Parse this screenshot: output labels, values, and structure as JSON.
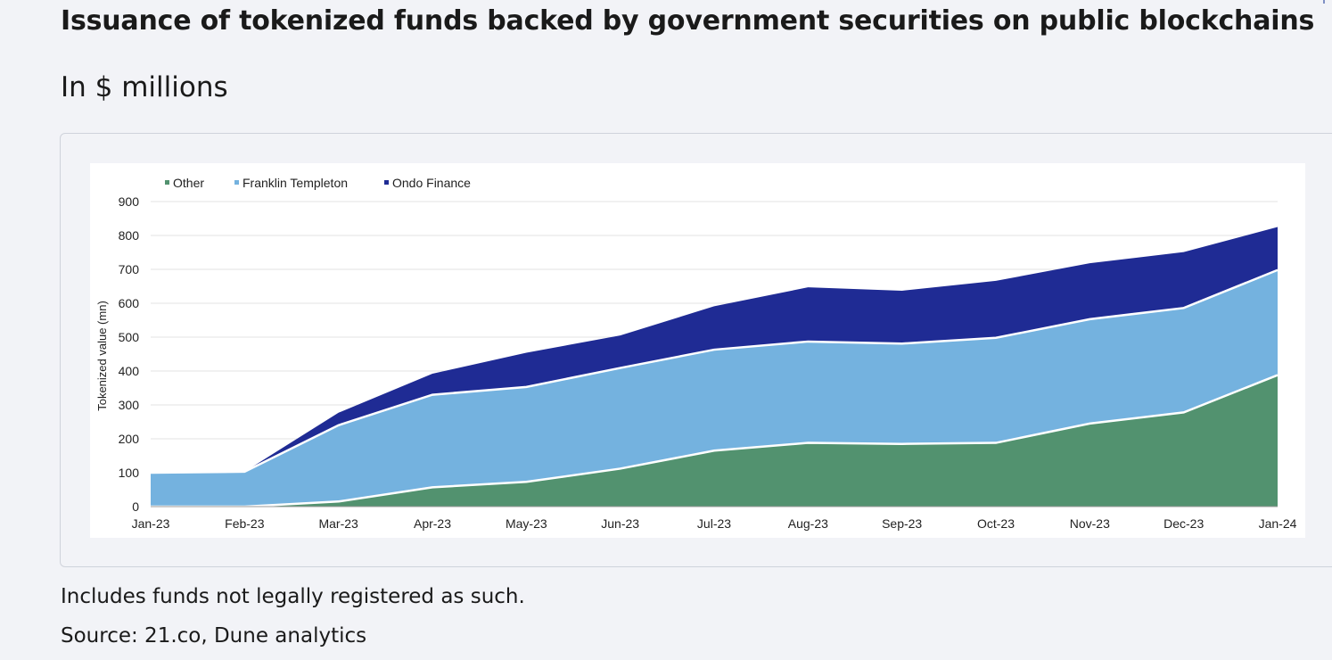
{
  "header": {
    "title": "Issuance of tokenized funds backed by government securities on public blockchains",
    "subtitle": "In $ millions"
  },
  "footer": {
    "note": "Includes funds not legally registered as such.",
    "source": "Source: 21.co, Dune analytics"
  },
  "chart_data": {
    "type": "area",
    "stacked": true,
    "title": "",
    "xlabel": "",
    "ylabel": "Tokenized value (mn)",
    "ylim": [
      0,
      900
    ],
    "yticks": [
      0,
      100,
      200,
      300,
      400,
      500,
      600,
      700,
      800,
      900
    ],
    "grid": true,
    "legend_position": "top-left",
    "categories": [
      "Jan-23",
      "Feb-23",
      "Mar-23",
      "Apr-23",
      "May-23",
      "Jun-23",
      "Jul-23",
      "Aug-23",
      "Sep-23",
      "Oct-23",
      "Nov-23",
      "Dec-23",
      "Jan-24"
    ],
    "series": [
      {
        "name": "Other",
        "color": "#52926f",
        "values": [
          0,
          0,
          15,
          57,
          73,
          112,
          165,
          188,
          185,
          188,
          245,
          278,
          388
        ]
      },
      {
        "name": "Franklin Templeton",
        "color": "#74b2df",
        "values": [
          100,
          103,
          225,
          273,
          280,
          297,
          298,
          299,
          296,
          310,
          308,
          308,
          310
        ]
      },
      {
        "name": "Ondo Finance",
        "color": "#1f2b94",
        "values": [
          0,
          0,
          37,
          62,
          101,
          96,
          128,
          160,
          156,
          168,
          165,
          165,
          127
        ]
      }
    ]
  }
}
